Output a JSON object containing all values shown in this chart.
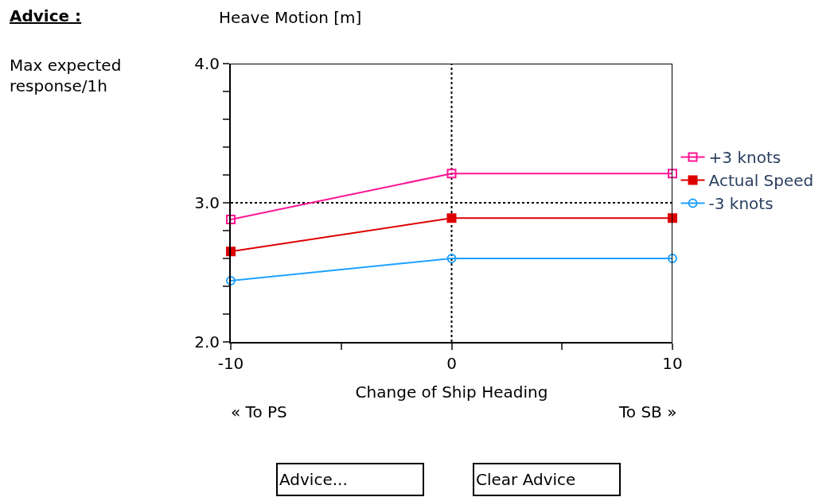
{
  "chart_data": {
    "type": "line",
    "title": "Heave Motion [m]",
    "xlabel": "Change of Ship Heading",
    "x": [
      -10,
      0,
      10
    ],
    "series": [
      {
        "name": "+3 knots",
        "color": "#ff1493",
        "values": [
          2.88,
          3.21,
          3.21
        ],
        "marker": "square"
      },
      {
        "name": "Actual Speed",
        "color": "#dd0000",
        "values": [
          2.65,
          2.89,
          2.89
        ],
        "marker": "square"
      },
      {
        "name": "-3 knots",
        "color": "#1ea0ff",
        "values": [
          2.44,
          2.6,
          2.6
        ],
        "marker": "circle"
      }
    ],
    "xlim": [
      -10,
      10
    ],
    "xticks": [
      -10,
      {
        "value": -5,
        "label": null
      },
      0,
      {
        "value": 5,
        "label": null
      },
      10
    ],
    "ylim": [
      2.0,
      4.0
    ],
    "yticks": [
      {
        "value": 2.0,
        "label": "2.0"
      },
      {
        "value": 2.2,
        "label": null
      },
      {
        "value": 2.4,
        "label": null
      },
      {
        "value": 2.6,
        "label": null
      },
      {
        "value": 2.8,
        "label": null
      },
      {
        "value": 3.0,
        "label": "3.0"
      },
      {
        "value": 3.2,
        "label": null
      },
      {
        "value": 3.4,
        "label": null
      },
      {
        "value": 3.6,
        "label": null
      },
      {
        "value": 3.8,
        "label": null
      },
      {
        "value": 4.0,
        "label": "4.0"
      }
    ],
    "ref_lines": [
      {
        "axis": "y",
        "value": 3.0,
        "line_style": "dotted",
        "color": "#000000"
      },
      {
        "axis": "x",
        "value": 0,
        "line_style": "dotted",
        "color": "#000000"
      }
    ],
    "annotations": [
      "Advice :",
      "Max expected response/1h",
      "« To PS",
      "To SB »",
      "Advice...",
      "Clear Advice"
    ],
    "legend": "right",
    "grid": false,
    "line_style": "solid"
  }
}
